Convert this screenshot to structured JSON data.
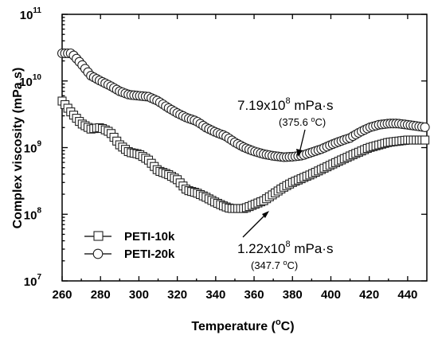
{
  "chart_data": {
    "type": "scatter",
    "xlabel_text": "Temperature (",
    "xlabel_sup": "o",
    "xlabel_unit": "C)",
    "ylabel": "Complex viscosity (mPa s)",
    "xlim": [
      260,
      450
    ],
    "ylim_log10": [
      7,
      11
    ],
    "y_scale": "log",
    "x_ticks": [
      "260",
      "280",
      "300",
      "320",
      "340",
      "360",
      "380",
      "400",
      "420",
      "440"
    ],
    "y_ticks": [
      {
        "base": "10",
        "exp": "7"
      },
      {
        "base": "10",
        "exp": "8"
      },
      {
        "base": "10",
        "exp": "9"
      },
      {
        "base": "10",
        "exp": "10"
      },
      {
        "base": "10",
        "exp": "11"
      }
    ],
    "legend_position": "bottom-left",
    "series": [
      {
        "name": "PETI-10k",
        "marker": "square",
        "points": [
          [
            260,
            5000000000.0
          ],
          [
            265,
            3300000000.0
          ],
          [
            270,
            2300000000.0
          ],
          [
            275,
            1900000000.0
          ],
          [
            280,
            2000000000.0
          ],
          [
            285,
            1700000000.0
          ],
          [
            290,
            1100000000.0
          ],
          [
            295,
            850000000.0
          ],
          [
            300,
            800000000.0
          ],
          [
            305,
            650000000.0
          ],
          [
            310,
            450000000.0
          ],
          [
            315,
            400000000.0
          ],
          [
            320,
            330000000.0
          ],
          [
            325,
            230000000.0
          ],
          [
            330,
            210000000.0
          ],
          [
            335,
            180000000.0
          ],
          [
            340,
            150000000.0
          ],
          [
            345,
            130000000.0
          ],
          [
            347.7,
            122000000.0
          ],
          [
            355,
            122000000.0
          ],
          [
            365,
            160000000.0
          ],
          [
            370,
            200000000.0
          ],
          [
            375,
            250000000.0
          ],
          [
            380,
            300000000.0
          ],
          [
            390,
            400000000.0
          ],
          [
            400,
            550000000.0
          ],
          [
            410,
            750000000.0
          ],
          [
            420,
            1000000000.0
          ],
          [
            430,
            1200000000.0
          ],
          [
            440,
            1300000000.0
          ],
          [
            450,
            1300000000.0
          ]
        ]
      },
      {
        "name": "PETI-20k",
        "marker": "circle",
        "points": [
          [
            260,
            26000000000.0
          ],
          [
            265,
            26000000000.0
          ],
          [
            270,
            18000000000.0
          ],
          [
            275,
            12000000000.0
          ],
          [
            280,
            10000000000.0
          ],
          [
            285,
            8500000000.0
          ],
          [
            290,
            7000000000.0
          ],
          [
            295,
            6200000000.0
          ],
          [
            300,
            6000000000.0
          ],
          [
            305,
            5800000000.0
          ],
          [
            310,
            5000000000.0
          ],
          [
            315,
            4000000000.0
          ],
          [
            320,
            3300000000.0
          ],
          [
            325,
            2800000000.0
          ],
          [
            330,
            2500000000.0
          ],
          [
            335,
            2000000000.0
          ],
          [
            340,
            1700000000.0
          ],
          [
            345,
            1500000000.0
          ],
          [
            350,
            1200000000.0
          ],
          [
            355,
            1000000000.0
          ],
          [
            360,
            880000000.0
          ],
          [
            365,
            800000000.0
          ],
          [
            370,
            750000000.0
          ],
          [
            375.6,
            719000000.0
          ],
          [
            380,
            730000000.0
          ],
          [
            385,
            760000000.0
          ],
          [
            390,
            850000000.0
          ],
          [
            395,
            950000000.0
          ],
          [
            400,
            1100000000.0
          ],
          [
            405,
            1250000000.0
          ],
          [
            410,
            1400000000.0
          ],
          [
            415,
            1700000000.0
          ],
          [
            420,
            2000000000.0
          ],
          [
            425,
            2200000000.0
          ],
          [
            430,
            2300000000.0
          ],
          [
            435,
            2300000000.0
          ],
          [
            440,
            2200000000.0
          ],
          [
            445,
            2100000000.0
          ],
          [
            450,
            2000000000.0
          ]
        ]
      }
    ],
    "annotations": [
      {
        "id": "peti20k-min",
        "value_base": "7.19x10",
        "value_exp": "8",
        "unit": " mPa·s",
        "temp": "(375.6 ",
        "temp_sup": "o",
        "temp_unit": "C)",
        "target": [
          375.6,
          719000000.0
        ]
      },
      {
        "id": "peti10k-min",
        "value_base": "1.22x10",
        "value_exp": "8",
        "unit": " mPa·s",
        "temp": "(347.7 ",
        "temp_sup": "o",
        "temp_unit": "C)",
        "target": [
          347.7,
          122000000.0
        ]
      }
    ]
  }
}
